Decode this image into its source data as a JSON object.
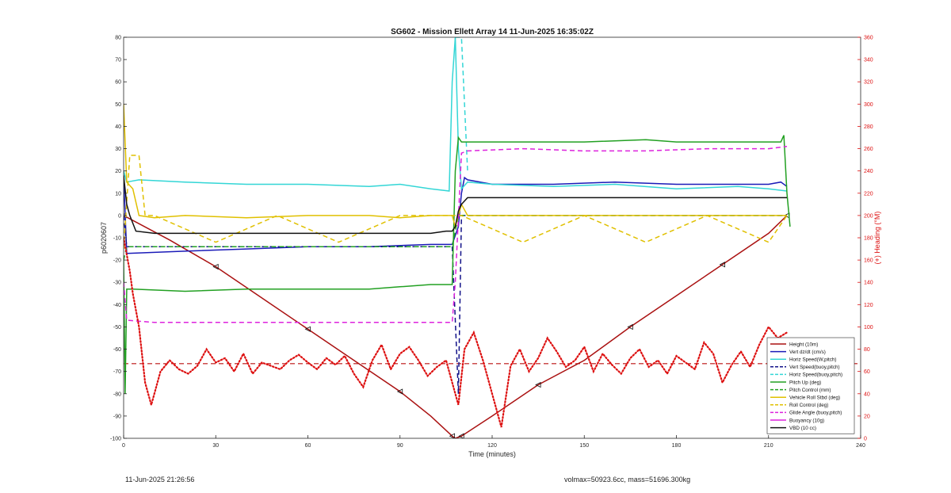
{
  "footer": {
    "left": "11-Jun-2025 21:26:56",
    "right": "volmax=50923.6cc, mass=51696.300kg"
  },
  "chart_data": {
    "type": "line",
    "title": "SG602 - Mission Ellett Array 14 11-Jun-2025 16:35:02Z",
    "xlabel": "Time (minutes)",
    "ylabel": "p6020607",
    "ylabel_right": "(+) Heading (°M)",
    "xlim": [
      0,
      240
    ],
    "ylim": [
      -100,
      80
    ],
    "ylim_right": [
      0,
      360
    ],
    "xticks": [
      0,
      30,
      60,
      90,
      120,
      150,
      180,
      210,
      240
    ],
    "yticks": [
      -100,
      -90,
      -80,
      -70,
      -60,
      -50,
      -40,
      -30,
      -20,
      -10,
      0,
      10,
      20,
      30,
      40,
      50,
      60,
      70,
      80
    ],
    "yticks_right": [
      0,
      20,
      40,
      60,
      80,
      100,
      120,
      140,
      160,
      180,
      200,
      220,
      240,
      260,
      280,
      300,
      320,
      340,
      360
    ],
    "grid": false,
    "legend_position": "bottom-right",
    "heading_mean": 67,
    "series": [
      {
        "name": "Height (10m)",
        "color": "#aa1111",
        "style": "solid-marker",
        "x": [
          0,
          15,
          30,
          45,
          60,
          75,
          90,
          100,
          107,
          108,
          110,
          120,
          135,
          150,
          165,
          180,
          195,
          210,
          216
        ],
        "y": [
          0,
          -11,
          -23,
          -37,
          -51,
          -65,
          -79,
          -90,
          -99,
          -100,
          -99,
          -90,
          -76,
          -65,
          -50,
          -36,
          -22,
          -8,
          0
        ]
      },
      {
        "name": "Vert dz/dt (cm/s)",
        "color": "#1a1ab8",
        "style": "solid",
        "x": [
          0,
          1,
          20,
          40,
          60,
          80,
          100,
          107,
          109,
          110,
          111,
          112,
          120,
          140,
          160,
          180,
          200,
          210,
          214,
          216
        ],
        "y": [
          18,
          -17,
          -16,
          -15,
          -14,
          -14,
          -13,
          -13,
          -5,
          10,
          17,
          16,
          14,
          14,
          15,
          14,
          14,
          14,
          15,
          13
        ]
      },
      {
        "name": "Horiz Speed(W,pitch)",
        "color": "#33d6d6",
        "style": "solid",
        "x": [
          0,
          1,
          5,
          20,
          40,
          60,
          80,
          90,
          100,
          106,
          107,
          108,
          109,
          110,
          112,
          120,
          140,
          160,
          180,
          200,
          210,
          216
        ],
        "y": [
          20,
          15,
          16,
          15,
          14,
          14,
          13,
          14,
          12,
          11,
          60,
          80,
          30,
          12,
          15,
          14,
          13,
          14,
          12,
          13,
          12,
          11
        ]
      },
      {
        "name": "Vert Speed(buoy,pitch)",
        "color": "#111188",
        "style": "dashed",
        "x": [
          0,
          1,
          107,
          109,
          110,
          216
        ],
        "y": [
          0,
          -14,
          -14,
          -80,
          0,
          0
        ]
      },
      {
        "name": "Horiz Speed(buoy,pitch)",
        "color": "#33d6d6",
        "style": "dashed",
        "x": [
          108,
          110,
          112
        ],
        "y": [
          80,
          80,
          20
        ]
      },
      {
        "name": "Pitch Up (deg)",
        "color": "#22a022",
        "style": "solid",
        "x": [
          0,
          0.5,
          1,
          3,
          20,
          40,
          60,
          80,
          90,
          100,
          107,
          108,
          109,
          110,
          112,
          130,
          150,
          170,
          180,
          200,
          214,
          215,
          216,
          217
        ],
        "y": [
          -20,
          -80,
          -33,
          -33,
          -34,
          -33,
          -33,
          -33,
          -32,
          -31,
          -31,
          20,
          35,
          33,
          33,
          33,
          33,
          34,
          33,
          33,
          33,
          36,
          10,
          -5
        ]
      },
      {
        "name": "Pitch Control (mm)",
        "color": "#22a022",
        "style": "dashed",
        "x": [
          0,
          1,
          107,
          109,
          110,
          216
        ],
        "y": [
          -20,
          -14,
          -14,
          0,
          0,
          0
        ]
      },
      {
        "name": "Vehicle Roll Stbd (deg)",
        "color": "#e0c000",
        "style": "solid",
        "x": [
          0,
          1,
          3,
          5,
          10,
          20,
          40,
          60,
          80,
          90,
          100,
          107,
          108,
          109,
          110,
          112,
          130,
          150,
          170,
          180,
          200,
          214,
          216
        ],
        "y": [
          50,
          15,
          12,
          0,
          -1,
          0,
          -1,
          0,
          0,
          -1,
          0,
          0,
          -5,
          0,
          5,
          0,
          0,
          0,
          0,
          0,
          0,
          0,
          0
        ]
      },
      {
        "name": "Roll Control (deg)",
        "color": "#e0c000",
        "style": "dashed",
        "x": [
          0,
          2,
          5,
          7,
          10,
          30,
          50,
          70,
          90,
          110,
          130,
          150,
          170,
          190,
          210,
          216
        ],
        "y": [
          -15,
          27,
          27,
          0,
          0,
          -12,
          0,
          -12,
          0,
          0,
          -12,
          0,
          -12,
          0,
          -12,
          0
        ]
      },
      {
        "name": "Glide Angle (buoy,pitch)",
        "color": "#dd22dd",
        "style": "dashed",
        "x": [
          0,
          1,
          10,
          30,
          60,
          90,
          100,
          105,
          107,
          108,
          110,
          112,
          130,
          150,
          170,
          190,
          210,
          216
        ],
        "y": [
          -30,
          -47,
          -48,
          -48,
          -48,
          -48,
          -48,
          -48,
          -48,
          -30,
          28,
          29,
          30,
          29,
          29,
          30,
          30,
          31
        ]
      },
      {
        "name": "Buoyancy (10g)",
        "color": "#dd22dd",
        "style": "solid",
        "x": [],
        "y": []
      },
      {
        "name": "VBD (10 cc)",
        "color": "#111111",
        "style": "solid",
        "x": [
          0,
          1,
          2,
          4,
          10,
          40,
          70,
          100,
          105,
          107,
          108,
          109,
          110,
          112,
          113,
          216
        ],
        "y": [
          18,
          5,
          0,
          -7,
          -8,
          -8,
          -8,
          -8,
          -7,
          -7,
          -5,
          2,
          5,
          8,
          8,
          8
        ]
      },
      {
        "name": "Heading",
        "color": "#dd1111",
        "style": "dotted",
        "axis": "right",
        "x": [
          0,
          1,
          2,
          3,
          5,
          7,
          9,
          12,
          15,
          18,
          21,
          24,
          27,
          30,
          33,
          36,
          39,
          42,
          45,
          48,
          51,
          54,
          57,
          60,
          63,
          66,
          69,
          72,
          75,
          78,
          81,
          84,
          87,
          90,
          93,
          96,
          99,
          102,
          105,
          107,
          109,
          111,
          114,
          117,
          120,
          123,
          126,
          129,
          132,
          135,
          138,
          141,
          144,
          147,
          150,
          153,
          156,
          159,
          162,
          165,
          168,
          171,
          174,
          177,
          180,
          183,
          186,
          189,
          192,
          195,
          198,
          201,
          204,
          207,
          210,
          213,
          216
        ],
        "y": [
          180,
          165,
          150,
          130,
          100,
          50,
          30,
          60,
          70,
          62,
          58,
          65,
          80,
          68,
          72,
          60,
          76,
          58,
          68,
          65,
          62,
          70,
          75,
          68,
          62,
          72,
          66,
          74,
          58,
          46,
          70,
          84,
          62,
          76,
          82,
          70,
          56,
          64,
          70,
          50,
          30,
          80,
          95,
          70,
          40,
          10,
          65,
          80,
          60,
          72,
          90,
          78,
          64,
          70,
          82,
          60,
          76,
          66,
          58,
          72,
          80,
          64,
          70,
          58,
          74,
          68,
          62,
          86,
          76,
          50,
          66,
          78,
          64,
          84,
          100,
          90,
          95
        ]
      }
    ]
  }
}
